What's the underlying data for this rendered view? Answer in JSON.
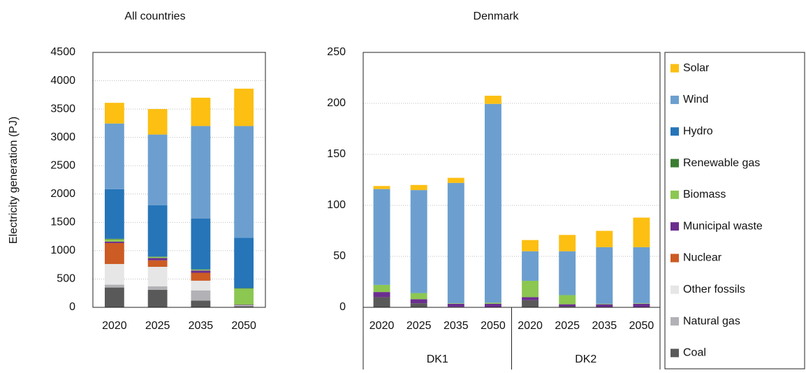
{
  "chart_data": [
    {
      "type": "bar",
      "stacked": true,
      "title": "All countries",
      "y_label": "Electricity generation (PJ)",
      "categories": [
        "2020",
        "2025",
        "2035",
        "2050"
      ],
      "ylim": [
        0,
        4500
      ],
      "yticks": [
        0,
        500,
        1000,
        1500,
        2000,
        2500,
        3000,
        3500,
        4000,
        4500
      ],
      "grid": true,
      "series": [
        {
          "name": "Coal",
          "color": "#595959",
          "values": [
            350,
            310,
            120,
            20
          ]
        },
        {
          "name": "Natural gas",
          "color": "#b2b2b6",
          "values": [
            50,
            60,
            180,
            10
          ]
        },
        {
          "name": "Other fossils",
          "color": "#e6e6e6",
          "values": [
            365,
            345,
            170,
            5
          ]
        },
        {
          "name": "Nuclear",
          "color": "#cc5b24",
          "values": [
            370,
            115,
            140,
            0
          ]
        },
        {
          "name": "Municipal waste",
          "color": "#6b2e8f",
          "values": [
            25,
            40,
            40,
            10
          ]
        },
        {
          "name": "Biomass",
          "color": "#8cc751",
          "values": [
            40,
            20,
            15,
            285
          ]
        },
        {
          "name": "Renewable gas",
          "color": "#3a7d32",
          "values": [
            10,
            5,
            5,
            10
          ]
        },
        {
          "name": "Hydro",
          "color": "#2675b9",
          "values": [
            875,
            905,
            900,
            890
          ]
        },
        {
          "name": "Wind",
          "color": "#6c9fcf",
          "values": [
            1160,
            1250,
            1630,
            1970
          ]
        },
        {
          "name": "Solar",
          "color": "#fcbf12",
          "values": [
            365,
            450,
            500,
            660
          ]
        }
      ]
    },
    {
      "type": "bar",
      "stacked": true,
      "title": "Denmark",
      "categories": [
        "2020",
        "2025",
        "2035",
        "2050",
        "2020",
        "2025",
        "2035",
        "2050"
      ],
      "groups": [
        "DK1",
        "DK2"
      ],
      "ylim": [
        0,
        250
      ],
      "yticks": [
        0,
        50,
        100,
        150,
        200,
        250
      ],
      "grid": true,
      "series": [
        {
          "values": [
            10,
            4,
            0.5,
            0,
            7,
            1,
            0,
            0
          ]
        },
        {
          "values": [
            0,
            0,
            0,
            0,
            0,
            0,
            0,
            0
          ]
        },
        {
          "values": [
            0,
            0,
            0,
            0,
            0,
            0,
            0,
            0
          ]
        },
        {
          "values": [
            0,
            0,
            0,
            0,
            0,
            0,
            0,
            0
          ]
        },
        {
          "values": [
            5,
            4,
            3,
            3.5,
            3,
            2,
            3,
            3.5
          ]
        },
        {
          "values": [
            7,
            6,
            0.5,
            1,
            16,
            9,
            0.5,
            0.5
          ]
        },
        {
          "values": [
            0,
            0,
            0,
            0,
            0,
            0,
            0,
            0
          ]
        },
        {
          "values": [
            0,
            0,
            0,
            0,
            0,
            0,
            0,
            0
          ]
        },
        {
          "values": [
            94,
            101,
            118,
            195,
            29,
            43,
            55.5,
            55
          ]
        },
        {
          "values": [
            3,
            5,
            5,
            8,
            11,
            16,
            16,
            29
          ]
        }
      ]
    }
  ]
}
